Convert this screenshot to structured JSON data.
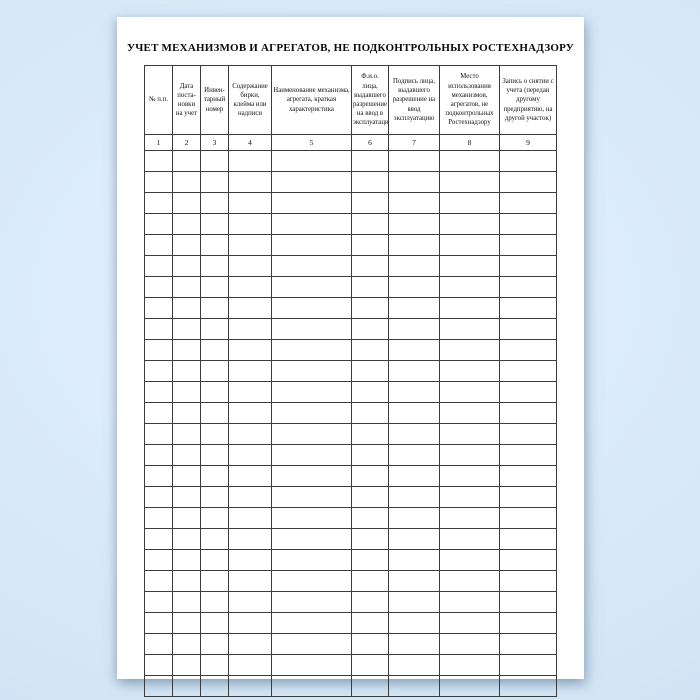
{
  "page": {
    "title": "УЧЕТ МЕХАНИЗМОВ И АГРЕГАТОВ, НЕ ПОДКОНТРОЛЬНЫХ РОСТЕХНАДЗОРУ"
  },
  "table": {
    "columns": [
      {
        "num": "1",
        "header": "№ п.п."
      },
      {
        "num": "2",
        "header": "Дата поста-новки на учет"
      },
      {
        "num": "3",
        "header": "Инвен-тарный номер"
      },
      {
        "num": "4",
        "header": "Содержание бирки, клейма или надписи"
      },
      {
        "num": "5",
        "header": "Наименование механизма, агрегата, краткая характеристика"
      },
      {
        "num": "6",
        "header": "Ф.и.о. лица, выдавшего разрешение на ввод в эксплуатацию"
      },
      {
        "num": "7",
        "header": "Подпись лица, выдавшего разрешение на ввод эксплуатацию"
      },
      {
        "num": "8",
        "header": "Место использования механизмов, агрегатов, не подконтрольных Ростехнадзору"
      },
      {
        "num": "9",
        "header": "Запись о снятии  с учета (передан другому предприятию, на другой участок)"
      }
    ],
    "empty_row_count": 26
  },
  "colors": {
    "paper": "#ffffff",
    "background_center": "#e4f1fc",
    "background_edge": "#c7dcef",
    "table_border": "#3c3c3c",
    "text": "#0a0a0a"
  }
}
